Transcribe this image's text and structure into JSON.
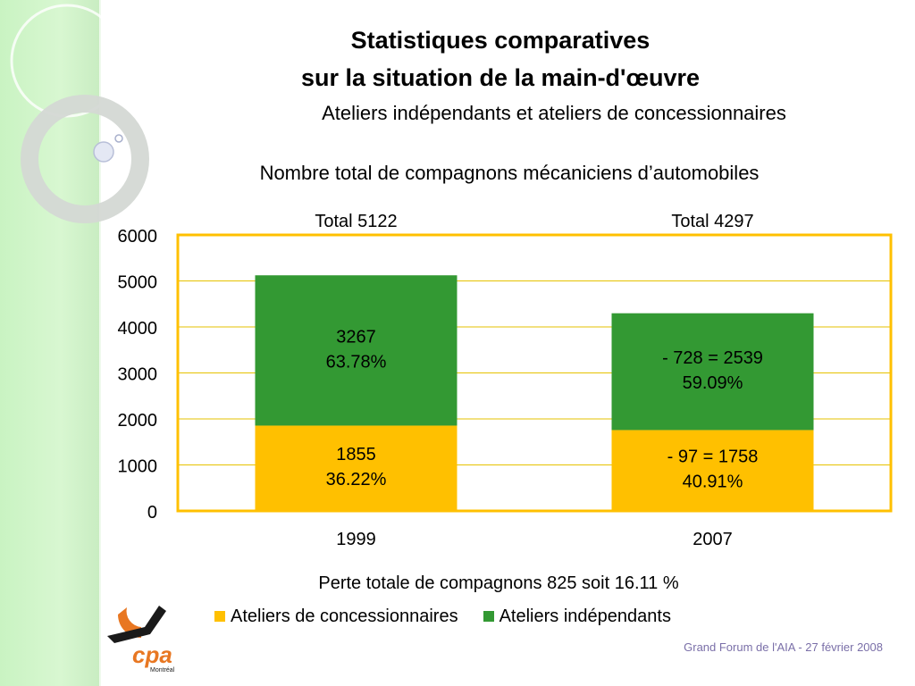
{
  "slide": {
    "title_line1": "Statistiques comparatives",
    "title_line2": "sur la situation de la main-d'œuvre",
    "subtitle": "Ateliers indépendants et ateliers de concessionnaires",
    "footer": "Grand Forum de l'AIA -  27 février 2008",
    "logo_text": "cpa",
    "logo_subtext": "Montréal"
  },
  "chart_data": {
    "type": "bar",
    "stacked": true,
    "title": "Nombre total de compagnons mécaniciens d’automobiles",
    "categories": [
      "1999",
      "2007"
    ],
    "totals": [
      "Total 5122",
      "Total 4297"
    ],
    "total_values": [
      5122,
      4297
    ],
    "series": [
      {
        "name": "Ateliers de concessionnaires",
        "color": "#ffc000",
        "values": [
          1855,
          1758
        ],
        "labels": [
          [
            "1855",
            "36.22%"
          ],
          [
            "- 97 = 1758",
            "40.91%"
          ]
        ]
      },
      {
        "name": "Ateliers indépendants",
        "color": "#339933",
        "values": [
          3267,
          2539
        ],
        "labels": [
          [
            "3267",
            "63.78%"
          ],
          [
            "- 728 = 2539",
            "59.09%"
          ]
        ]
      }
    ],
    "ylim": [
      0,
      6000
    ],
    "yticks": [
      "0",
      "1000",
      "2000",
      "3000",
      "4000",
      "5000",
      "6000"
    ],
    "grid": true,
    "grid_color": "#e6c200",
    "plot_border_color": "#ffc000",
    "note": "Perte totale de compagnons 825 soit 16.11 %",
    "legend_position": "bottom"
  }
}
